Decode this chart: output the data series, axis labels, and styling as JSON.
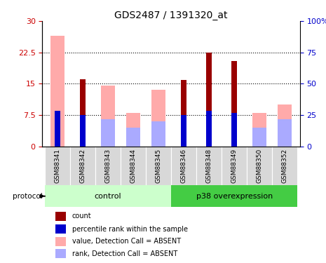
{
  "title": "GDS2487 / 1391320_at",
  "samples": [
    "GSM88341",
    "GSM88342",
    "GSM88343",
    "GSM88344",
    "GSM88345",
    "GSM88346",
    "GSM88348",
    "GSM88349",
    "GSM88350",
    "GSM88352"
  ],
  "red_bars": [
    0,
    16.0,
    0,
    0,
    0,
    15.8,
    22.5,
    20.5,
    0,
    0
  ],
  "pink_bars": [
    26.5,
    0,
    14.5,
    8.0,
    13.5,
    0,
    0,
    0,
    8.0,
    10.0
  ],
  "blue_bars": [
    8.5,
    7.5,
    0,
    0,
    0,
    7.5,
    8.5,
    8.0,
    0,
    0
  ],
  "lightblue_bars": [
    0,
    0,
    6.5,
    4.5,
    6.0,
    0,
    0,
    0,
    4.5,
    6.5
  ],
  "ylim_left": [
    0,
    30
  ],
  "ylim_right": [
    0,
    100
  ],
  "yticks_left": [
    0,
    7.5,
    15,
    22.5,
    30
  ],
  "yticks_right": [
    0,
    25,
    50,
    75,
    100
  ],
  "yticklabels_left": [
    "0",
    "7.5",
    "15",
    "22.5",
    "30"
  ],
  "yticklabels_right": [
    "0",
    "25",
    "50",
    "75",
    "100%"
  ],
  "wide_bar_width": 0.55,
  "narrow_bar_width": 0.22,
  "bar_color_red": "#990000",
  "bar_color_pink": "#ffaaaa",
  "bar_color_blue": "#0000cc",
  "bar_color_lightblue": "#aaaaff",
  "legend_labels": [
    "count",
    "percentile rank within the sample",
    "value, Detection Call = ABSENT",
    "rank, Detection Call = ABSENT"
  ],
  "legend_colors": [
    "#990000",
    "#0000cc",
    "#ffaaaa",
    "#aaaaff"
  ],
  "group_band_color_light": "#ccffcc",
  "group_band_color_dark": "#44cc44",
  "protocol_label": "protocol",
  "background_color": "#ffffff",
  "label_color_left": "#cc0000",
  "label_color_right": "#0000cc"
}
